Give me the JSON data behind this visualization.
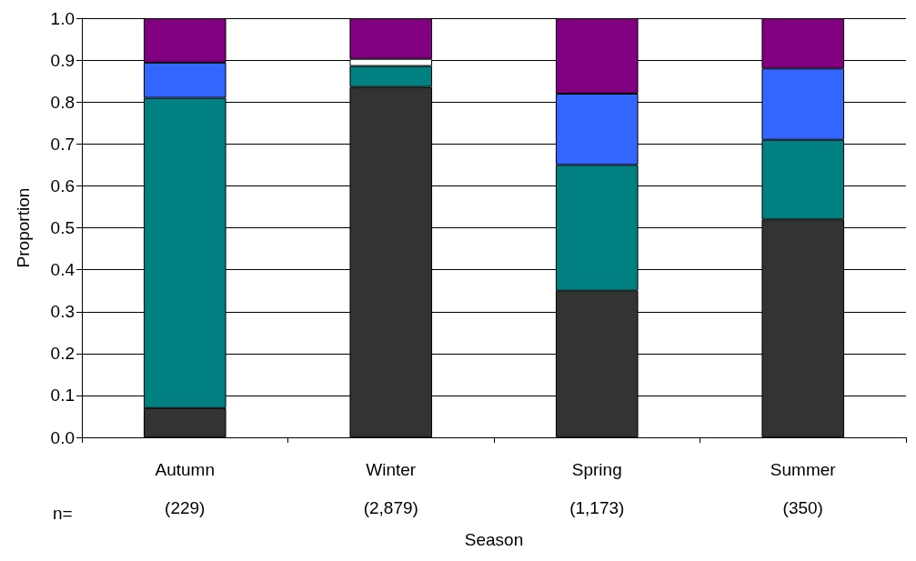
{
  "chart_data": {
    "type": "bar",
    "stacked": true,
    "xlabel": "Season",
    "ylabel": "Proportion",
    "categories": [
      "Autumn\n(229)",
      "Winter\n(2,879)",
      "Spring\n(1,173)",
      "Summer\n(350)"
    ],
    "series": [
      {
        "color": "#333333",
        "values": [
          0.07,
          0.836,
          0.35,
          0.52
        ]
      },
      {
        "color": "#008080",
        "values": [
          0.74,
          0.05,
          0.3,
          0.19
        ]
      },
      {
        "color": "#3366ff",
        "values": [
          0.084,
          null,
          0.17,
          0.17
        ]
      },
      {
        "color": "#ffffff",
        "values": [
          null,
          0.017,
          null,
          null
        ]
      },
      {
        "color": "#800080",
        "values": [
          0.106,
          0.097,
          0.18,
          0.12
        ]
      }
    ],
    "ylim": [
      0,
      1
    ],
    "yticks": [
      {
        "value": 0,
        "label": "0.0"
      },
      {
        "value": 0.1,
        "label": "0.1"
      },
      {
        "value": 0.2,
        "label": "0.2"
      },
      {
        "value": 0.3,
        "label": "0.3"
      },
      {
        "value": 0.4,
        "label": "0.4"
      },
      {
        "value": 0.5,
        "label": "0.5"
      },
      {
        "value": 0.6,
        "label": "0.6"
      },
      {
        "value": 0.7,
        "label": "0.7"
      },
      {
        "value": 0.8,
        "label": "0.8"
      },
      {
        "value": 0.9,
        "label": "0.9"
      },
      {
        "value": 1,
        "label": "1.0"
      }
    ],
    "grid": "y",
    "annotations": [
      "n="
    ]
  }
}
